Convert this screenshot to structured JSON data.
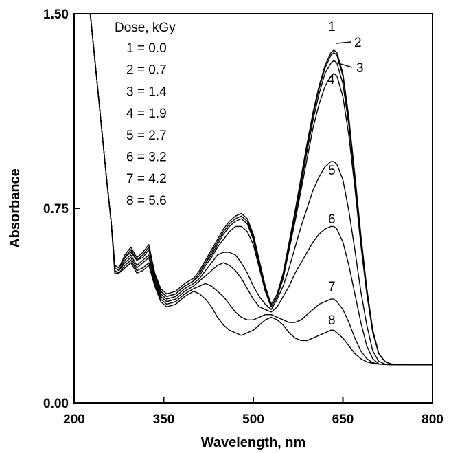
{
  "chart_data": {
    "type": "line",
    "xlabel": "Wavelength, nm",
    "ylabel": "Absorbance",
    "xlim": [
      200,
      800
    ],
    "ylim": [
      0.0,
      1.5
    ],
    "x_ticks": [
      "200",
      "350",
      "500",
      "650",
      "800"
    ],
    "y_ticks": [
      "0.00",
      "0.75",
      "1.50"
    ],
    "grid": false,
    "legend": {
      "title": "Dose, kGy",
      "placement": "top-left",
      "entries": [
        "1 = 0.0",
        "2 = 0.7",
        "3 = 1.4",
        "4 = 1.9",
        "5 = 2.7",
        "6 = 3.2",
        "7 = 4.2",
        "8 = 5.6"
      ]
    },
    "series": [
      {
        "label": "1",
        "x": [
          227,
          240,
          255,
          262,
          268,
          275,
          285,
          295,
          305,
          315,
          325,
          335,
          345,
          355,
          370,
          385,
          400,
          410,
          420,
          430,
          440,
          450,
          460,
          470,
          480,
          490,
          500,
          510,
          520,
          530,
          540,
          550,
          560,
          570,
          580,
          590,
          600,
          610,
          620,
          630,
          635,
          640,
          650,
          660,
          670,
          680,
          690,
          700,
          710,
          720,
          730,
          740,
          760,
          800
        ],
        "y": [
          1.5,
          1.2,
          0.85,
          0.7,
          0.53,
          0.52,
          0.57,
          0.6,
          0.56,
          0.58,
          0.61,
          0.5,
          0.44,
          0.42,
          0.43,
          0.46,
          0.48,
          0.51,
          0.55,
          0.59,
          0.63,
          0.67,
          0.7,
          0.72,
          0.73,
          0.71,
          0.65,
          0.55,
          0.45,
          0.38,
          0.42,
          0.5,
          0.62,
          0.74,
          0.87,
          1.0,
          1.12,
          1.22,
          1.3,
          1.35,
          1.36,
          1.35,
          1.27,
          1.1,
          0.88,
          0.65,
          0.44,
          0.28,
          0.19,
          0.16,
          0.15,
          0.148,
          0.147,
          0.147
        ]
      },
      {
        "label": "2",
        "x": [
          227,
          240,
          255,
          262,
          268,
          275,
          285,
          295,
          305,
          315,
          325,
          335,
          345,
          355,
          370,
          385,
          400,
          410,
          420,
          430,
          440,
          450,
          460,
          470,
          480,
          490,
          500,
          510,
          520,
          530,
          540,
          550,
          560,
          570,
          580,
          590,
          600,
          610,
          620,
          630,
          635,
          640,
          650,
          660,
          670,
          680,
          690,
          700,
          710,
          720,
          730,
          740,
          760,
          800
        ],
        "y": [
          1.5,
          1.2,
          0.85,
          0.7,
          0.53,
          0.52,
          0.56,
          0.59,
          0.55,
          0.57,
          0.6,
          0.5,
          0.43,
          0.41,
          0.42,
          0.45,
          0.47,
          0.5,
          0.54,
          0.58,
          0.62,
          0.66,
          0.69,
          0.71,
          0.72,
          0.7,
          0.64,
          0.54,
          0.44,
          0.37,
          0.41,
          0.49,
          0.61,
          0.73,
          0.86,
          0.99,
          1.11,
          1.21,
          1.29,
          1.34,
          1.35,
          1.34,
          1.26,
          1.09,
          0.87,
          0.64,
          0.44,
          0.28,
          0.19,
          0.16,
          0.15,
          0.148,
          0.147,
          0.147
        ]
      },
      {
        "label": "3",
        "x": [
          227,
          240,
          255,
          262,
          268,
          275,
          285,
          295,
          305,
          315,
          325,
          335,
          345,
          355,
          370,
          385,
          400,
          410,
          420,
          430,
          440,
          450,
          460,
          470,
          480,
          490,
          500,
          510,
          520,
          530,
          540,
          550,
          560,
          570,
          580,
          590,
          600,
          610,
          620,
          630,
          635,
          640,
          650,
          660,
          670,
          680,
          690,
          700,
          710,
          720,
          730,
          740,
          760,
          800
        ],
        "y": [
          1.5,
          1.2,
          0.85,
          0.7,
          0.53,
          0.52,
          0.56,
          0.59,
          0.55,
          0.57,
          0.6,
          0.5,
          0.43,
          0.41,
          0.42,
          0.45,
          0.47,
          0.5,
          0.54,
          0.57,
          0.61,
          0.65,
          0.68,
          0.7,
          0.71,
          0.69,
          0.63,
          0.53,
          0.43,
          0.37,
          0.41,
          0.48,
          0.6,
          0.72,
          0.84,
          0.97,
          1.09,
          1.19,
          1.27,
          1.31,
          1.32,
          1.31,
          1.23,
          1.07,
          0.86,
          0.63,
          0.43,
          0.28,
          0.19,
          0.16,
          0.15,
          0.148,
          0.147,
          0.147
        ]
      },
      {
        "label": "4",
        "x": [
          227,
          240,
          255,
          262,
          268,
          275,
          285,
          295,
          305,
          315,
          325,
          335,
          345,
          355,
          370,
          385,
          400,
          410,
          420,
          430,
          440,
          450,
          460,
          470,
          480,
          490,
          500,
          510,
          520,
          530,
          540,
          550,
          560,
          570,
          580,
          590,
          600,
          610,
          620,
          630,
          635,
          640,
          650,
          660,
          670,
          680,
          690,
          700,
          710,
          720,
          730,
          740,
          760,
          800
        ],
        "y": [
          1.5,
          1.2,
          0.85,
          0.7,
          0.53,
          0.52,
          0.56,
          0.58,
          0.55,
          0.56,
          0.59,
          0.49,
          0.43,
          0.41,
          0.42,
          0.45,
          0.47,
          0.49,
          0.53,
          0.56,
          0.6,
          0.63,
          0.66,
          0.68,
          0.68,
          0.66,
          0.61,
          0.52,
          0.43,
          0.37,
          0.41,
          0.48,
          0.59,
          0.7,
          0.82,
          0.94,
          1.06,
          1.15,
          1.22,
          1.26,
          1.27,
          1.26,
          1.18,
          1.03,
          0.83,
          0.61,
          0.42,
          0.27,
          0.19,
          0.16,
          0.15,
          0.148,
          0.147,
          0.147
        ]
      },
      {
        "label": "5",
        "x": [
          227,
          240,
          255,
          262,
          268,
          275,
          285,
          295,
          305,
          315,
          325,
          335,
          345,
          355,
          370,
          385,
          400,
          410,
          420,
          430,
          440,
          450,
          460,
          470,
          480,
          490,
          500,
          510,
          520,
          530,
          540,
          550,
          560,
          570,
          580,
          590,
          600,
          610,
          620,
          630,
          635,
          640,
          650,
          660,
          670,
          680,
          690,
          700,
          710,
          720,
          730,
          740,
          760,
          800
        ],
        "y": [
          1.5,
          1.2,
          0.85,
          0.7,
          0.52,
          0.51,
          0.55,
          0.57,
          0.53,
          0.55,
          0.57,
          0.48,
          0.42,
          0.4,
          0.41,
          0.44,
          0.46,
          0.48,
          0.51,
          0.54,
          0.57,
          0.58,
          0.58,
          0.57,
          0.54,
          0.5,
          0.45,
          0.41,
          0.38,
          0.36,
          0.4,
          0.45,
          0.52,
          0.6,
          0.68,
          0.75,
          0.82,
          0.87,
          0.91,
          0.93,
          0.93,
          0.92,
          0.86,
          0.74,
          0.59,
          0.43,
          0.3,
          0.2,
          0.16,
          0.15,
          0.148,
          0.147,
          0.147,
          0.147
        ]
      },
      {
        "label": "6",
        "x": [
          227,
          240,
          255,
          262,
          268,
          275,
          285,
          295,
          305,
          315,
          325,
          335,
          345,
          355,
          370,
          385,
          400,
          410,
          420,
          430,
          440,
          450,
          460,
          470,
          480,
          490,
          500,
          510,
          520,
          530,
          540,
          550,
          560,
          570,
          580,
          590,
          600,
          610,
          620,
          630,
          635,
          640,
          650,
          660,
          670,
          680,
          690,
          700,
          710,
          720,
          730,
          740,
          760,
          800
        ],
        "y": [
          1.5,
          1.2,
          0.85,
          0.7,
          0.52,
          0.51,
          0.54,
          0.56,
          0.52,
          0.54,
          0.56,
          0.47,
          0.41,
          0.39,
          0.4,
          0.43,
          0.45,
          0.47,
          0.49,
          0.51,
          0.53,
          0.54,
          0.53,
          0.51,
          0.48,
          0.44,
          0.4,
          0.37,
          0.36,
          0.35,
          0.37,
          0.41,
          0.45,
          0.5,
          0.54,
          0.58,
          0.62,
          0.65,
          0.67,
          0.68,
          0.68,
          0.67,
          0.62,
          0.53,
          0.42,
          0.31,
          0.22,
          0.17,
          0.15,
          0.148,
          0.147,
          0.147,
          0.147,
          0.147
        ]
      },
      {
        "label": "7",
        "x": [
          227,
          240,
          255,
          262,
          268,
          275,
          285,
          295,
          305,
          315,
          325,
          335,
          345,
          355,
          370,
          385,
          400,
          410,
          420,
          430,
          440,
          450,
          460,
          470,
          480,
          490,
          500,
          510,
          520,
          530,
          540,
          550,
          560,
          570,
          580,
          590,
          600,
          610,
          620,
          630,
          635,
          640,
          650,
          660,
          670,
          680,
          690,
          700,
          710,
          720,
          730,
          740,
          760,
          800
        ],
        "y": [
          1.5,
          1.2,
          0.85,
          0.7,
          0.51,
          0.5,
          0.53,
          0.55,
          0.51,
          0.52,
          0.54,
          0.46,
          0.4,
          0.38,
          0.39,
          0.42,
          0.44,
          0.45,
          0.46,
          0.45,
          0.43,
          0.41,
          0.38,
          0.35,
          0.33,
          0.32,
          0.32,
          0.33,
          0.34,
          0.34,
          0.33,
          0.32,
          0.31,
          0.31,
          0.32,
          0.34,
          0.36,
          0.38,
          0.39,
          0.4,
          0.4,
          0.39,
          0.36,
          0.31,
          0.25,
          0.2,
          0.17,
          0.155,
          0.15,
          0.148,
          0.147,
          0.147,
          0.147,
          0.147
        ]
      },
      {
        "label": "8",
        "x": [
          227,
          240,
          255,
          262,
          268,
          275,
          285,
          295,
          305,
          315,
          325,
          335,
          345,
          355,
          370,
          385,
          400,
          410,
          420,
          430,
          440,
          450,
          460,
          470,
          480,
          490,
          500,
          510,
          520,
          530,
          540,
          550,
          560,
          570,
          580,
          590,
          600,
          610,
          620,
          630,
          635,
          640,
          650,
          660,
          670,
          680,
          690,
          700,
          710,
          720,
          730,
          740,
          760,
          800
        ],
        "y": [
          1.5,
          1.2,
          0.85,
          0.7,
          0.5,
          0.5,
          0.52,
          0.54,
          0.5,
          0.51,
          0.53,
          0.45,
          0.39,
          0.37,
          0.38,
          0.41,
          0.43,
          0.42,
          0.4,
          0.37,
          0.33,
          0.3,
          0.28,
          0.27,
          0.26,
          0.27,
          0.28,
          0.3,
          0.32,
          0.33,
          0.32,
          0.3,
          0.27,
          0.25,
          0.24,
          0.24,
          0.25,
          0.26,
          0.27,
          0.28,
          0.28,
          0.27,
          0.25,
          0.22,
          0.19,
          0.17,
          0.158,
          0.152,
          0.149,
          0.148,
          0.147,
          0.147,
          0.147,
          0.147
        ]
      }
    ]
  }
}
